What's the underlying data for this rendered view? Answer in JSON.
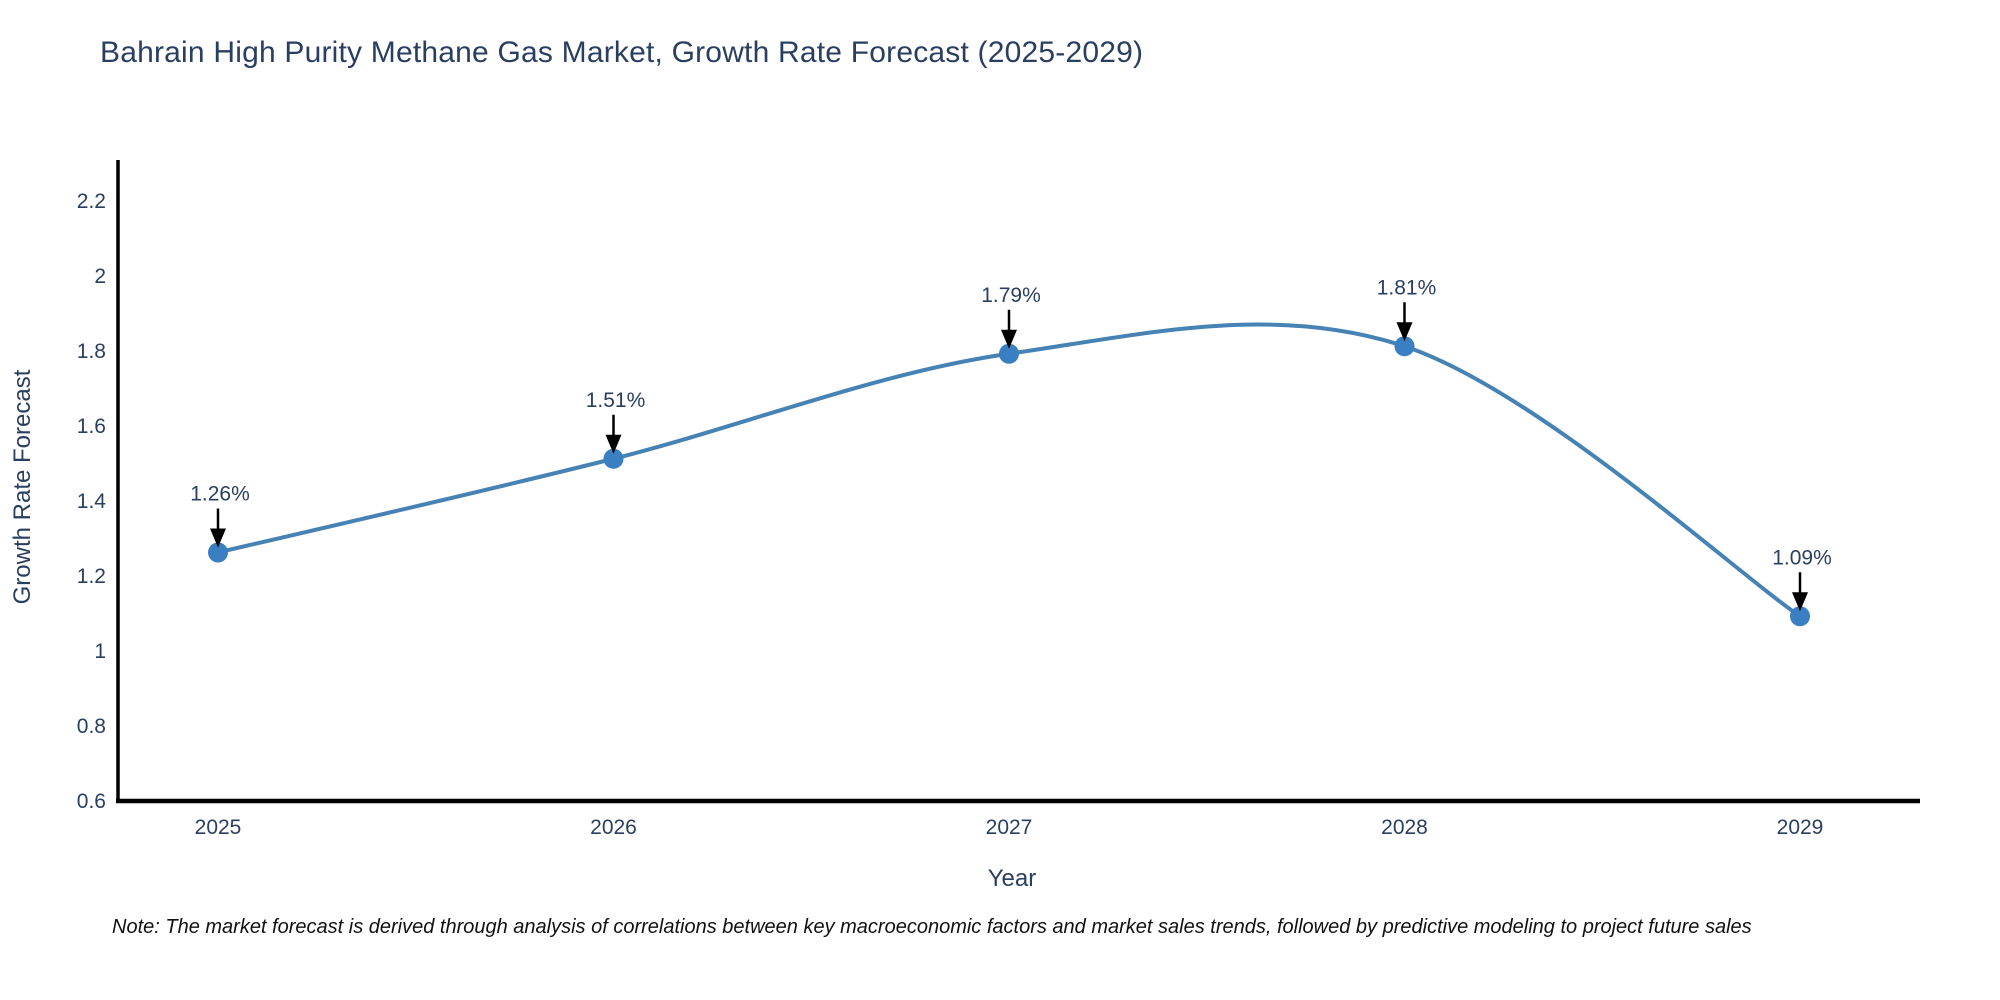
{
  "title": "Bahrain High Purity Methane Gas Market, Growth Rate Forecast (2025-2029)",
  "note": "Note: The market forecast is derived through analysis of correlations between key macroeconomic factors and market sales trends, followed by predictive modeling to project future sales",
  "colors": {
    "text": "#2a3f5f",
    "line": "#4682b4",
    "marker": "#3a7fc1",
    "axis": "#000000",
    "arrow": "#000000",
    "background": "#ffffff"
  },
  "chart_data": {
    "type": "line",
    "title": "Bahrain High Purity Methane Gas Market, Growth Rate Forecast (2025-2029)",
    "xlabel": "Year",
    "ylabel": "Growth Rate Forecast",
    "x": [
      2025,
      2026,
      2027,
      2028,
      2029
    ],
    "values": [
      1.26,
      1.51,
      1.79,
      1.81,
      1.09
    ],
    "labels": [
      "1.26%",
      "1.51%",
      "1.79%",
      "1.81%",
      "1.09%"
    ],
    "series_name": "Growth Rate Forecast",
    "line_shape": "spline",
    "grid": false,
    "legend": "none",
    "ylim": [
      0.6,
      2.31
    ],
    "xlim": [
      2024.75,
      2029.3
    ],
    "yticks": [
      0.6,
      0.8,
      1,
      1.2,
      1.4,
      1.6,
      1.8,
      2,
      2.2
    ],
    "ytick_labels": [
      "0.6",
      "0.8",
      "1",
      "1.2",
      "1.4",
      "1.6",
      "1.8",
      "2",
      "2.2"
    ],
    "xticks": [
      2025,
      2026,
      2027,
      2028,
      2029
    ],
    "xtick_labels": [
      "2025",
      "2026",
      "2027",
      "2028",
      "2029"
    ]
  }
}
